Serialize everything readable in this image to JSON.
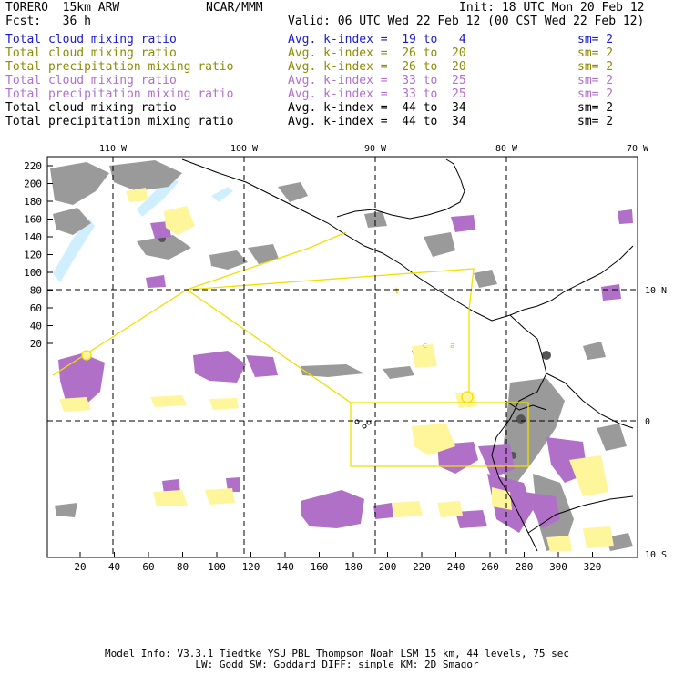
{
  "header": {
    "model": "TORERO  15km ARW",
    "org": "NCAR/MMM",
    "init": "Init: 18 UTC Mon 20 Feb 12",
    "fcst": "Fcst:   36 h",
    "valid": "Valid: 06 UTC Wed 22 Feb 12 (00 CST Wed 22 Feb 12)"
  },
  "legend": [
    {
      "label": "Total cloud mixing ratio",
      "kindex": "Avg. k-index =  19 to   4",
      "sm": "sm= 2",
      "color": "#1a1ad0"
    },
    {
      "label": "Total cloud mixing ratio",
      "kindex": "Avg. k-index =  26 to  20",
      "sm": "sm= 2",
      "color": "#8c8c00"
    },
    {
      "label": "Total precipitation mixing ratio",
      "kindex": "Avg. k-index =  26 to  20",
      "sm": "sm= 2",
      "color": "#8c8c00"
    },
    {
      "label": "Total cloud mixing ratio",
      "kindex": "Avg. k-index =  33 to  25",
      "sm": "sm= 2",
      "color": "#b070c8"
    },
    {
      "label": "Total precipitation mixing ratio",
      "kindex": "Avg. k-index =  33 to  25",
      "sm": "sm= 2",
      "color": "#b070c8"
    },
    {
      "label": "Total cloud mixing ratio",
      "kindex": "Avg. k-index =  44 to  34",
      "sm": "sm= 2",
      "color": "#000000"
    },
    {
      "label": "Total precipitation mixing ratio",
      "kindex": "Avg. k-index =  44 to  34",
      "sm": "sm= 2",
      "color": "#000000"
    }
  ],
  "map": {
    "lon_labels": [
      "110 W",
      "100 W",
      "90 W",
      "80 W",
      "70 W"
    ],
    "lat_labels": [
      "10 N",
      "0",
      "10 S"
    ],
    "x_ticks": [
      "20",
      "40",
      "60",
      "80",
      "100",
      "120",
      "140",
      "160",
      "180",
      "200",
      "220",
      "240",
      "260",
      "280",
      "300",
      "320"
    ],
    "y_ticks": [
      "220",
      "200",
      "180",
      "160",
      "140",
      "120",
      "100",
      "80",
      "60",
      "40",
      "20"
    ],
    "box_letters": [
      "t",
      "c",
      "a"
    ],
    "colors": {
      "cloud_gray": "#9a9a9a",
      "dark_gray": "#555555",
      "purple": "#b070c8",
      "yellow": "#fff59a",
      "yellow_line": "#f0e000",
      "cyan": "#cfefff"
    }
  },
  "footer": {
    "line1": "Model Info: V3.3.1   Tiedtke YSU PBL  Thompson    Noah LSM  15 km,   44 levels,   75 sec",
    "line2": "LW: Godd SW: Goddard DIFF: simple KM: 2D Smagor"
  }
}
